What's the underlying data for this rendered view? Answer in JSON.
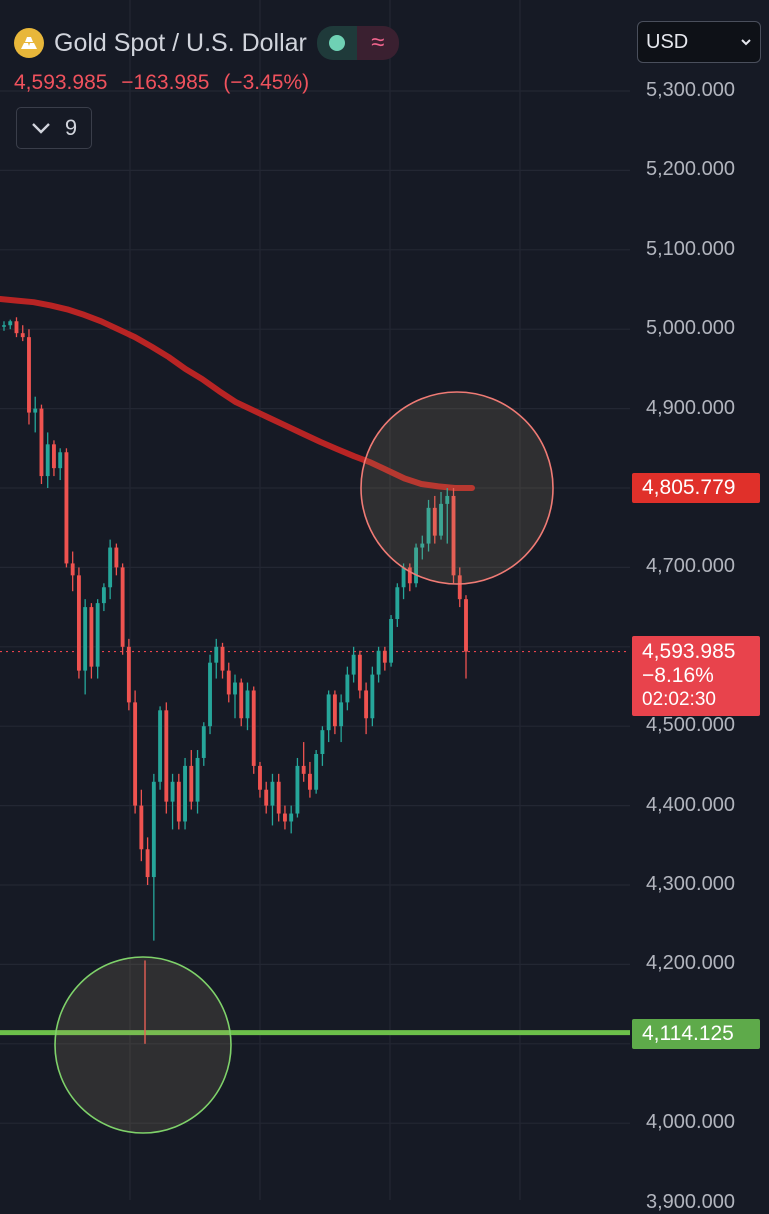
{
  "header": {
    "title": "Gold Spot / U.S. Dollar",
    "last": "4,593.985",
    "change": "−163.985",
    "change_pct": "(−3.45%)",
    "indicators_count": "9",
    "wave_icon": "≈",
    "chevron_icon": "⌄"
  },
  "currency_select": {
    "value": "USD",
    "options": [
      "USD"
    ]
  },
  "price_tags": {
    "ma_value": "4,805.779",
    "current_price": "4,593.985",
    "current_change": "−8.16%",
    "countdown": "02:02:30",
    "support": "4,114.125"
  },
  "colors": {
    "background": "#161a25",
    "up": "#26a69a",
    "down": "#ef5350",
    "moving_average": "#b82424",
    "support_line": "#6cc04a",
    "resistance_circle": "#f07b75",
    "support_circle": "#7fd26a"
  },
  "chart_data": {
    "type": "candlestick",
    "title": "Gold Spot / U.S. Dollar",
    "currency": "USD",
    "y_ticks": [
      "5,300.000",
      "5,200.000",
      "5,100.000",
      "5,000.000",
      "4,900.000",
      "4,700.000",
      "4,500.000",
      "4,400.000",
      "4,300.000",
      "4,200.000",
      "4,000.000",
      "3,900.000"
    ],
    "ylim": [
      3880,
      5370
    ],
    "current_price": 4593.985,
    "support_level": 4114.125,
    "candles": [
      [
        5005,
        5010,
        4998,
        5005
      ],
      [
        5005,
        5012,
        5000,
        5010
      ],
      [
        5010,
        5015,
        4990,
        4995
      ],
      [
        4995,
        5005,
        4985,
        4990
      ],
      [
        4990,
        5000,
        4880,
        4895
      ],
      [
        4895,
        4915,
        4870,
        4900
      ],
      [
        4900,
        4905,
        4805,
        4815
      ],
      [
        4815,
        4870,
        4800,
        4855
      ],
      [
        4855,
        4860,
        4815,
        4825
      ],
      [
        4825,
        4850,
        4810,
        4845
      ],
      [
        4845,
        4850,
        4700,
        4705
      ],
      [
        4705,
        4720,
        4670,
        4690
      ],
      [
        4690,
        4700,
        4560,
        4570
      ],
      [
        4570,
        4660,
        4540,
        4650
      ],
      [
        4650,
        4655,
        4560,
        4575
      ],
      [
        4575,
        4660,
        4560,
        4655
      ],
      [
        4655,
        4680,
        4645,
        4675
      ],
      [
        4675,
        4735,
        4660,
        4725
      ],
      [
        4725,
        4730,
        4690,
        4700
      ],
      [
        4700,
        4705,
        4590,
        4600
      ],
      [
        4600,
        4610,
        4520,
        4530
      ],
      [
        4530,
        4545,
        4390,
        4400
      ],
      [
        4400,
        4420,
        4330,
        4345
      ],
      [
        4345,
        4360,
        4300,
        4310
      ],
      [
        4310,
        4440,
        4230,
        4430
      ],
      [
        4430,
        4525,
        4420,
        4520
      ],
      [
        4520,
        4530,
        4390,
        4405
      ],
      [
        4405,
        4440,
        4370,
        4430
      ],
      [
        4430,
        4440,
        4370,
        4380
      ],
      [
        4380,
        4460,
        4370,
        4450
      ],
      [
        4450,
        4470,
        4395,
        4405
      ],
      [
        4405,
        4470,
        4390,
        4460
      ],
      [
        4460,
        4505,
        4450,
        4500
      ],
      [
        4500,
        4590,
        4490,
        4580
      ],
      [
        4580,
        4610,
        4560,
        4600
      ],
      [
        4600,
        4605,
        4560,
        4570
      ],
      [
        4570,
        4580,
        4530,
        4540
      ],
      [
        4540,
        4565,
        4510,
        4555
      ],
      [
        4555,
        4560,
        4500,
        4510
      ],
      [
        4510,
        4555,
        4495,
        4545
      ],
      [
        4545,
        4550,
        4440,
        4450
      ],
      [
        4450,
        4455,
        4410,
        4420
      ],
      [
        4420,
        4430,
        4390,
        4400
      ],
      [
        4400,
        4440,
        4375,
        4430
      ],
      [
        4430,
        4440,
        4380,
        4390
      ],
      [
        4390,
        4400,
        4370,
        4380
      ],
      [
        4380,
        4400,
        4365,
        4390
      ],
      [
        4390,
        4460,
        4385,
        4450
      ],
      [
        4450,
        4480,
        4430,
        4440
      ],
      [
        4440,
        4455,
        4410,
        4420
      ],
      [
        4420,
        4470,
        4415,
        4465
      ],
      [
        4465,
        4500,
        4450,
        4495
      ],
      [
        4495,
        4545,
        4480,
        4540
      ],
      [
        4540,
        4545,
        4490,
        4500
      ],
      [
        4500,
        4540,
        4480,
        4530
      ],
      [
        4530,
        4575,
        4520,
        4565
      ],
      [
        4565,
        4600,
        4555,
        4590
      ],
      [
        4590,
        4595,
        4535,
        4545
      ],
      [
        4545,
        4555,
        4490,
        4510
      ],
      [
        4510,
        4575,
        4500,
        4565
      ],
      [
        4565,
        4600,
        4555,
        4595
      ],
      [
        4595,
        4600,
        4570,
        4580
      ],
      [
        4580,
        4640,
        4575,
        4635
      ],
      [
        4635,
        4680,
        4625,
        4675
      ],
      [
        4675,
        4705,
        4660,
        4700
      ],
      [
        4700,
        4705,
        4670,
        4680
      ],
      [
        4680,
        4730,
        4675,
        4725
      ],
      [
        4725,
        4740,
        4710,
        4730
      ],
      [
        4730,
        4785,
        4720,
        4775
      ],
      [
        4775,
        4790,
        4730,
        4740
      ],
      [
        4740,
        4795,
        4735,
        4780
      ],
      [
        4780,
        4800,
        4730,
        4790
      ],
      [
        4790,
        4800,
        4680,
        4690
      ],
      [
        4690,
        4700,
        4650,
        4660
      ],
      [
        4660,
        4665,
        4560,
        4594
      ]
    ],
    "moving_average": [
      5038,
      5036,
      5034,
      5030,
      5025,
      5018,
      5010,
      5000,
      4990,
      4978,
      4965,
      4950,
      4937,
      4922,
      4908,
      4898,
      4888,
      4878,
      4868,
      4858,
      4849,
      4840,
      4832,
      4822,
      4812,
      4805,
      4802,
      4800,
      4800
    ],
    "annotations": [
      {
        "shape": "circle",
        "at": "resistance near moving average",
        "price": 4800
      },
      {
        "shape": "circle",
        "at": "swing low at support",
        "price": 4105
      }
    ]
  }
}
